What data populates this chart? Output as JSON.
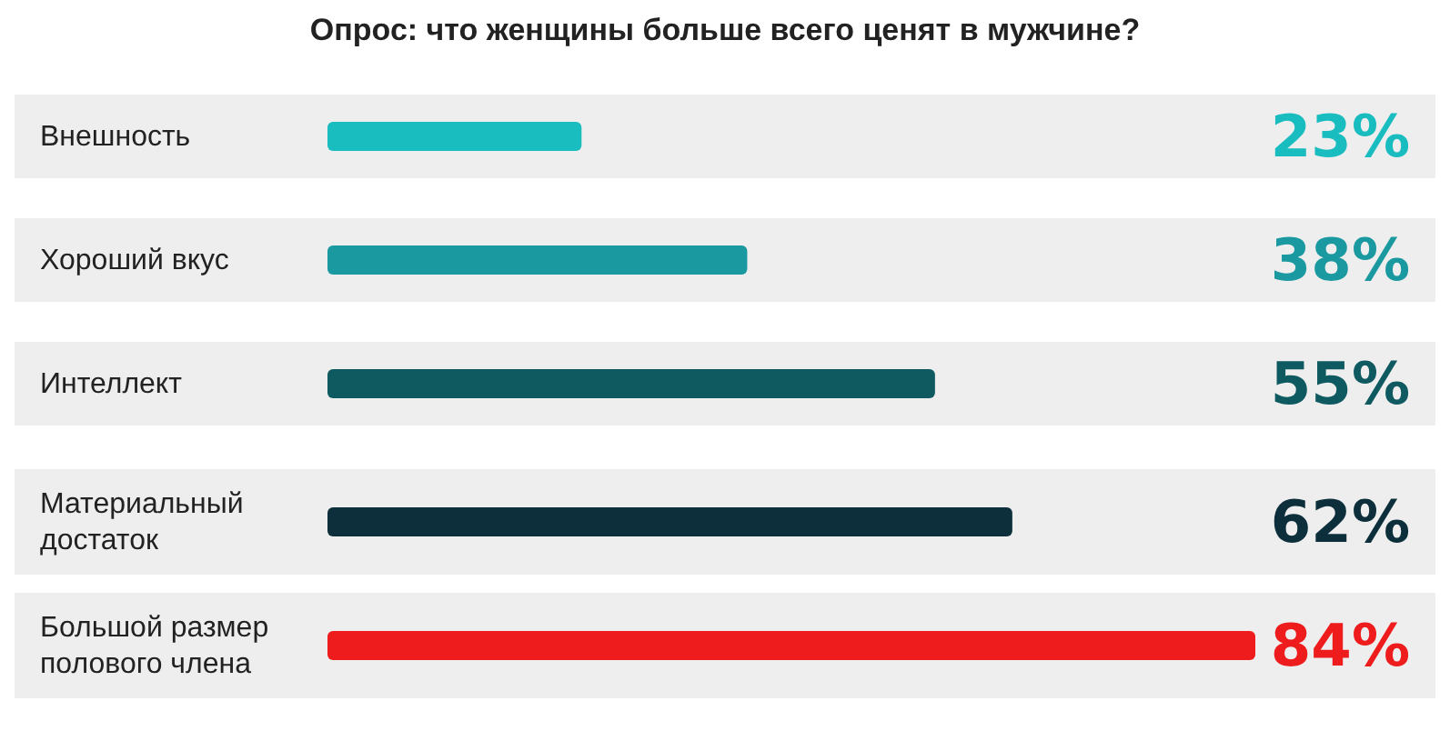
{
  "chart_data": {
    "type": "bar",
    "orientation": "horizontal",
    "title": "Опрос: что женщины больше всего ценят в мужчине?",
    "categories": [
      "Внешность",
      "Хороший вкус",
      "Интеллект",
      "Материальный достаток",
      "Большой размер полового члена"
    ],
    "values": [
      23,
      38,
      55,
      62,
      84
    ],
    "colors": [
      "#19bcbf",
      "#1a99a0",
      "#0e5a60",
      "#0c2f3b",
      "#ee1c1c"
    ],
    "value_labels": [
      "23%",
      "38%",
      "55%",
      "62%",
      "84%"
    ]
  }
}
